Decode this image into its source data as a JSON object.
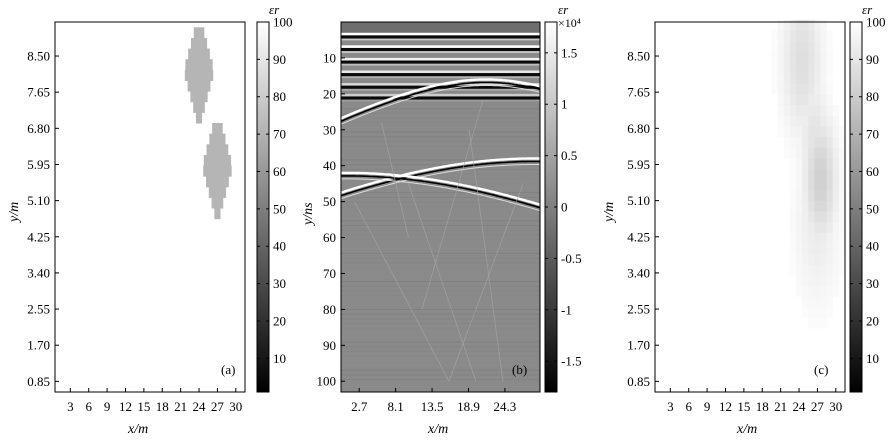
{
  "chart_data": [
    {
      "type": "heatmap",
      "panel_label": "(a)",
      "xlabel": "x/m",
      "ylabel": "y/m",
      "x_ticks": [
        "3",
        "6",
        "9",
        "12",
        "15",
        "18",
        "21",
        "24",
        "27",
        "30"
      ],
      "x_tick_values": [
        3,
        6,
        9,
        12,
        15,
        18,
        21,
        24,
        27,
        30
      ],
      "xlim": [
        0.5,
        31.5
      ],
      "y_ticks": [
        "8.50",
        "7.65",
        "6.80",
        "5.95",
        "5.10",
        "4.25",
        "3.40",
        "2.55",
        "1.70",
        "0.85"
      ],
      "y_tick_values": [
        8.5,
        7.65,
        6.8,
        5.95,
        5.1,
        4.25,
        3.4,
        2.55,
        1.7,
        0.85
      ],
      "ylim": [
        0.6,
        9.3
      ],
      "colorbar": {
        "label": "εr",
        "ticks": [
          "100",
          "90",
          "80",
          "70",
          "60",
          "50",
          "40",
          "30",
          "20",
          "10"
        ],
        "tick_values": [
          100,
          90,
          80,
          70,
          60,
          50,
          40,
          30,
          20,
          10
        ],
        "range": [
          1,
          100
        ]
      },
      "background_value": 1,
      "anomalies": [
        {
          "x_center": 24.0,
          "y_center": 8.15,
          "x_halfwidth": 2.0,
          "y_halfwidth": 1.1,
          "value": 30
        },
        {
          "x_center": 27.0,
          "y_center": 5.9,
          "x_halfwidth": 2.0,
          "y_halfwidth": 1.1,
          "value": 30
        }
      ]
    },
    {
      "type": "heatmap",
      "panel_label": "(b)",
      "xlabel": "x/m",
      "ylabel": "y/ns",
      "x_ticks": [
        "2.7",
        "8.1",
        "13.5",
        "18.9",
        "24.3"
      ],
      "x_tick_values": [
        2.7,
        8.1,
        13.5,
        18.9,
        24.3
      ],
      "xlim": [
        0,
        29.5
      ],
      "y_ticks": [
        "10",
        "20",
        "30",
        "40",
        "50",
        "60",
        "70",
        "80",
        "90",
        "100"
      ],
      "y_tick_values": [
        10,
        20,
        30,
        40,
        50,
        60,
        70,
        80,
        90,
        100
      ],
      "ylim": [
        0,
        103
      ],
      "colorbar": {
        "label": "εr",
        "multiplier": "×10⁴",
        "ticks": [
          "1.5",
          "1",
          "0.5",
          "0",
          "-0.5",
          "-1",
          "-1.5"
        ],
        "tick_values": [
          1.5,
          1,
          0.5,
          0,
          -0.5,
          -1,
          -1.5
        ],
        "range": [
          -1.8,
          1.8
        ]
      },
      "direct_wave_bands_ns": [
        3,
        6.5,
        10,
        13.5,
        17,
        20
      ],
      "hyperbolas": [
        {
          "apex_x": 21.5,
          "apex_t": 16
        },
        {
          "apex_x": 28.5,
          "apex_t": 38
        },
        {
          "apex_x": 0.8,
          "apex_t": 42
        }
      ]
    },
    {
      "type": "heatmap",
      "panel_label": "(c)",
      "xlabel": "x/m",
      "ylabel": "y/m",
      "x_ticks": [
        "3",
        "6",
        "9",
        "12",
        "15",
        "18",
        "21",
        "24",
        "27",
        "30"
      ],
      "x_tick_values": [
        3,
        6,
        9,
        12,
        15,
        18,
        21,
        24,
        27,
        30
      ],
      "xlim": [
        0.5,
        31.5
      ],
      "y_ticks": [
        "8.50",
        "7.65",
        "6.80",
        "5.95",
        "5.10",
        "4.25",
        "3.40",
        "2.55",
        "1.70",
        "0.85"
      ],
      "y_tick_values": [
        8.5,
        7.65,
        6.8,
        5.95,
        5.1,
        4.25,
        3.4,
        2.55,
        1.7,
        0.85
      ],
      "ylim": [
        0.6,
        9.3
      ],
      "colorbar": {
        "label": "εr",
        "ticks": [
          "100",
          "90",
          "80",
          "70",
          "60",
          "50",
          "40",
          "30",
          "20",
          "10"
        ],
        "tick_values": [
          100,
          90,
          80,
          70,
          60,
          50,
          40,
          30,
          20,
          10
        ],
        "range": [
          1,
          100
        ]
      },
      "background_value": 1,
      "blobs": [
        {
          "x_center": 24.5,
          "y_center": 8.4,
          "value": 13,
          "radius": 3.2
        },
        {
          "x_center": 27.5,
          "y_center": 5.6,
          "value": 19,
          "radius": 2.6
        },
        {
          "x_center": 26.5,
          "y_center": 6.6,
          "value": 11,
          "radius": 2.5
        },
        {
          "x_center": 27.0,
          "y_center": 4.6,
          "value": 8,
          "radius": 3.5
        }
      ]
    }
  ]
}
